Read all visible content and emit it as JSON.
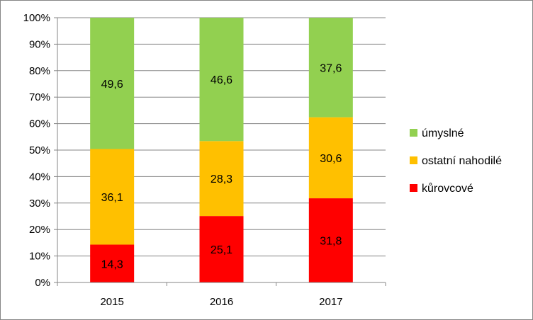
{
  "chart_data": {
    "type": "bar",
    "stacked": "percent",
    "categories": [
      "2015",
      "2016",
      "2017"
    ],
    "series": [
      {
        "name": "kůrovcové",
        "values": [
          14.3,
          25.1,
          31.8
        ],
        "labels": [
          "14,3",
          "25,1",
          "31,8"
        ],
        "color": "#ff0000"
      },
      {
        "name": "ostatní nahodilé",
        "values": [
          36.1,
          28.3,
          30.6
        ],
        "labels": [
          "36,1",
          "28,3",
          "30,6"
        ],
        "color": "#ffc000"
      },
      {
        "name": "úmyslné",
        "values": [
          49.6,
          46.6,
          37.6
        ],
        "labels": [
          "49,6",
          "46,6",
          "37,6"
        ],
        "color": "#92d050"
      }
    ],
    "y_ticks": [
      "0%",
      "10%",
      "20%",
      "30%",
      "40%",
      "50%",
      "60%",
      "70%",
      "80%",
      "90%",
      "100%"
    ],
    "ylim": [
      0,
      100
    ],
    "grid": true,
    "legend_position": "right",
    "title": "",
    "xlabel": "",
    "ylabel": ""
  }
}
